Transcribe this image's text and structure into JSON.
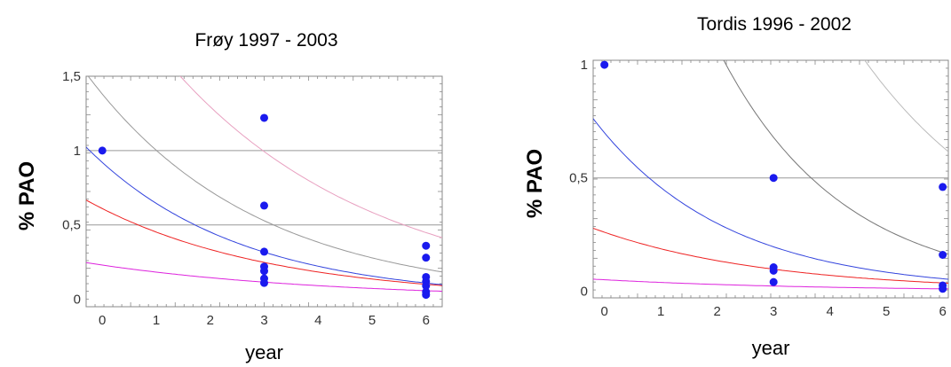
{
  "chart_data": [
    {
      "type": "scatter",
      "title": "Frøy 1997 - 2003",
      "xlabel": "year",
      "ylabel": "% PAO",
      "xlim": [
        -0.3,
        6.3
      ],
      "ylim": [
        -0.05,
        1.5
      ],
      "xticks": [
        0,
        1,
        2,
        3,
        4,
        5,
        6
      ],
      "yticks": [
        0,
        0.5,
        1,
        1.5
      ],
      "ytick_labels": [
        "0",
        "0,5",
        "1",
        "1,5"
      ],
      "hlines": [
        0.5,
        1
      ],
      "points": [
        {
          "x": 0,
          "y": 1.0
        },
        {
          "x": 3,
          "y": 1.22
        },
        {
          "x": 3,
          "y": 0.63
        },
        {
          "x": 3,
          "y": 0.32
        },
        {
          "x": 3,
          "y": 0.22
        },
        {
          "x": 3,
          "y": 0.19
        },
        {
          "x": 3,
          "y": 0.14
        },
        {
          "x": 3,
          "y": 0.11
        },
        {
          "x": 6,
          "y": 0.36
        },
        {
          "x": 6,
          "y": 0.28
        },
        {
          "x": 6,
          "y": 0.15
        },
        {
          "x": 6,
          "y": 0.12
        },
        {
          "x": 6,
          "y": 0.09
        },
        {
          "x": 6,
          "y": 0.05
        },
        {
          "x": 6,
          "y": 0.03
        }
      ],
      "curves": [
        {
          "color": "#e8a0c0",
          "y0": 2.2,
          "k": 0.265
        },
        {
          "color": "#999999",
          "y0": 1.38,
          "k": 0.32
        },
        {
          "color": "#3344dd",
          "y0": 0.92,
          "k": 0.355
        },
        {
          "color": "#ee2222",
          "y0": 0.61,
          "k": 0.3
        },
        {
          "color": "#dd22dd",
          "y0": 0.23,
          "k": 0.23
        }
      ],
      "grid": false,
      "legend": "none"
    },
    {
      "type": "scatter",
      "title": "Tordis 1996 - 2002",
      "xlabel": "year",
      "ylabel": "% PAO",
      "xlim": [
        -0.2,
        6.1
      ],
      "ylim": [
        -0.03,
        1.02
      ],
      "xticks": [
        0,
        1,
        2,
        3,
        4,
        5,
        6
      ],
      "yticks": [
        0,
        0.5,
        1
      ],
      "ytick_labels": [
        "0",
        "0,5",
        "1"
      ],
      "hlines": [
        0.5
      ],
      "points": [
        {
          "x": 0,
          "y": 1.0
        },
        {
          "x": 3,
          "y": 0.5
        },
        {
          "x": 3,
          "y": 0.105
        },
        {
          "x": 3,
          "y": 0.09
        },
        {
          "x": 3,
          "y": 0.04
        },
        {
          "x": 6,
          "y": 0.46
        },
        {
          "x": 6,
          "y": 0.16
        },
        {
          "x": 6,
          "y": 0.025
        },
        {
          "x": 6,
          "y": 0.01
        }
      ],
      "curves": [
        {
          "color": "#bbbbbb",
          "y0": 4.9,
          "k": 0.34
        },
        {
          "color": "#777777",
          "y0": 2.7,
          "k": 0.46
        },
        {
          "color": "#3344dd",
          "y0": 0.7,
          "k": 0.425
        },
        {
          "color": "#ee2222",
          "y0": 0.26,
          "k": 0.33
        },
        {
          "color": "#dd22dd",
          "y0": 0.05,
          "k": 0.27
        }
      ],
      "grid": false,
      "legend": "none"
    }
  ]
}
